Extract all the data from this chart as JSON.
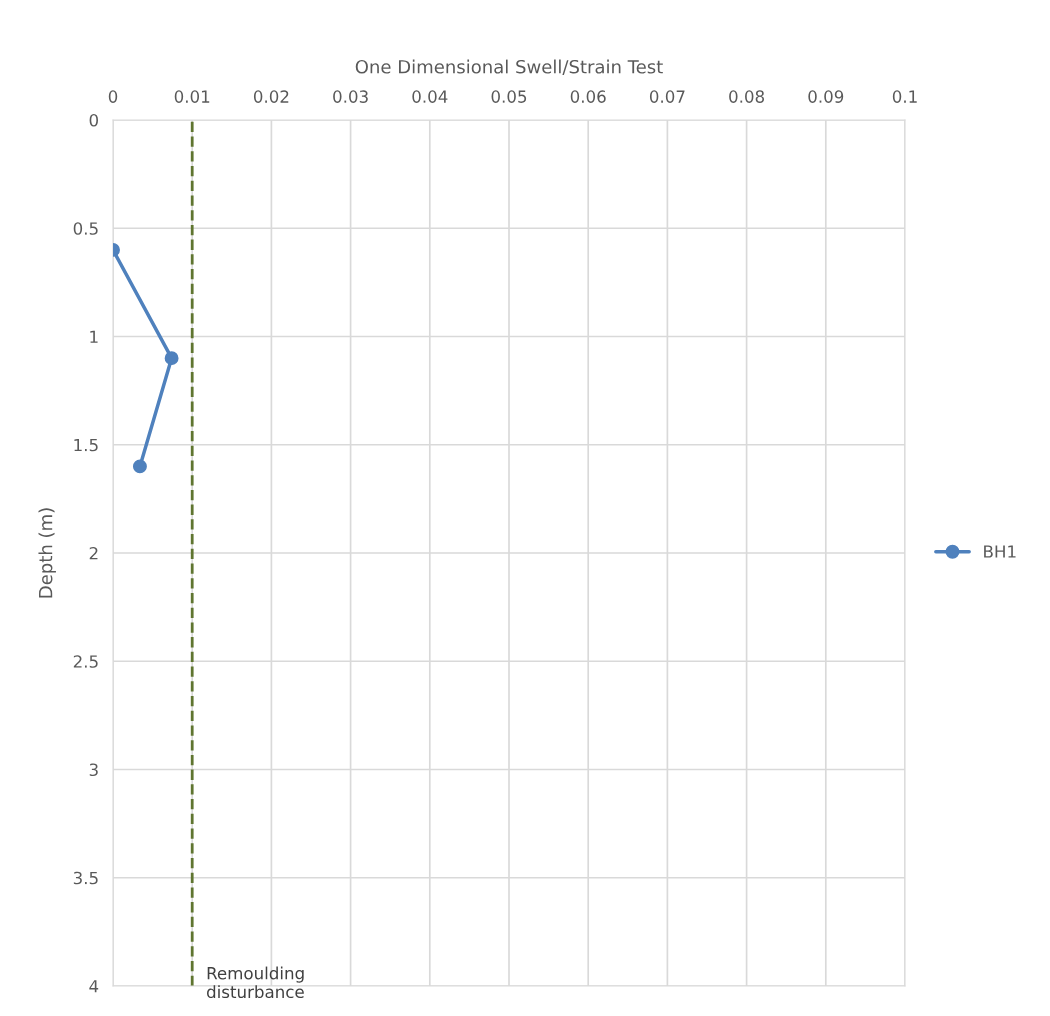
{
  "chart_data": {
    "type": "line",
    "xlabel": "One Dimensional Swell/Strain Test",
    "ylabel": "Depth (m)",
    "series": [
      {
        "name": "BH1",
        "color": "#4f81bd",
        "x": [
          0,
          0.0074,
          0.0034
        ],
        "values": [
          0.6,
          1.1,
          1.6
        ]
      }
    ],
    "xlim": [
      0,
      0.1
    ],
    "xticks": [
      0,
      0.01,
      0.02,
      0.03,
      0.04,
      0.05,
      0.06,
      0.07,
      0.08,
      0.09,
      0.1
    ],
    "ylim": [
      4,
      0
    ],
    "yticks": [
      0,
      0.5,
      1,
      1.5,
      2,
      2.5,
      3,
      3.5,
      4
    ],
    "ref_lines": [
      {
        "axis": "x",
        "value": 0.01,
        "label": "Remoulding\ndisturbance",
        "color": "#5f7530",
        "line_style": "dashed"
      }
    ],
    "grid": true,
    "legend": "right",
    "marker": "circle",
    "line_style": "solid"
  }
}
